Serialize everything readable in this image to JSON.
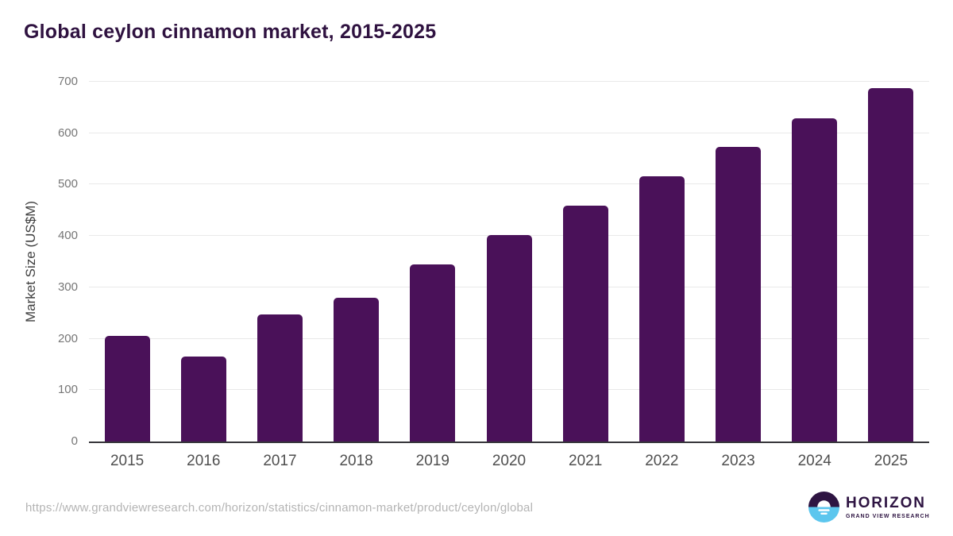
{
  "header": {
    "title": "Global ceylon cinnamon market, 2015-2025"
  },
  "chart_data": {
    "type": "bar",
    "title": "Global ceylon cinnamon market, 2015-2025",
    "categories": [
      "2015",
      "2016",
      "2017",
      "2018",
      "2019",
      "2020",
      "2021",
      "2022",
      "2023",
      "2024",
      "2025"
    ],
    "values": [
      206,
      165,
      248,
      280,
      345,
      402,
      459,
      516,
      573,
      629,
      687
    ],
    "xlabel": "",
    "ylabel": "Market Size (US$M)",
    "ylim": [
      0,
      700
    ],
    "yticks": [
      0,
      100,
      200,
      300,
      400,
      500,
      600,
      700
    ],
    "grid": true,
    "legend": false,
    "bar_color": "#4a1159"
  },
  "footer": {
    "source_url": "https://www.grandviewresearch.com/horizon/statistics/cinnamon-market/product/ceylon/global",
    "logo": {
      "brand": "HORIZON",
      "sub_brand": "GRAND VIEW RESEARCH",
      "purple": "#2e1442",
      "blue": "#5cc6ee"
    }
  },
  "colors": {
    "bar": "#4a1159",
    "title": "#2f1240",
    "grid": "#e9e9e9",
    "axis_line": "#36353a",
    "y_tick": "#767676",
    "x_tick": "#4f4f4f",
    "url_text": "#b4b4b4"
  }
}
